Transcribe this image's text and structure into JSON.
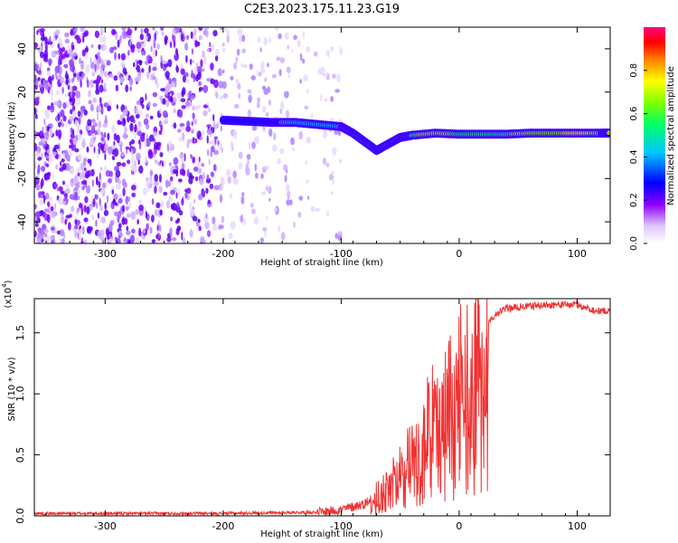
{
  "title": "C2E3.2023.175.11.23.G19",
  "chart_data": [
    {
      "type": "heatmap",
      "xlabel": "Height of straight line (km)",
      "ylabel": "Frequency (Hz)",
      "xlim": [
        -360,
        128
      ],
      "ylim": [
        -50,
        50
      ],
      "xticks": [
        -300,
        -200,
        -100,
        0,
        100
      ],
      "yticks": [
        -40,
        -20,
        0,
        20,
        40
      ],
      "colorbar": {
        "label": "Normalized spectral amplitude",
        "range": [
          0,
          1
        ],
        "ticks": [
          "0.0",
          "0.2",
          "0.4",
          "0.6",
          "0.8"
        ],
        "colors": [
          "#ffffff",
          "#8e00ff",
          "#0000ff",
          "#00c8ff",
          "#00ff66",
          "#7fff00",
          "#ffff00",
          "#ff8000",
          "#ff0000",
          "#ff0080"
        ]
      },
      "noise_region": {
        "x_range": [
          -360,
          -100
        ],
        "description_color": "#7a00ff"
      },
      "ridge": {
        "x": [
          -200,
          -180,
          -160,
          -140,
          -120,
          -100,
          -90,
          -80,
          -70,
          -60,
          -50,
          -40,
          -20,
          0,
          20,
          40,
          60,
          80,
          100,
          120,
          128
        ],
        "y": [
          7,
          6.5,
          6,
          6,
          5,
          4,
          1,
          -3,
          -7,
          -4,
          -1,
          0,
          1,
          0.5,
          0.5,
          0.5,
          1,
          1,
          1,
          1,
          1
        ],
        "amplitude": [
          0.25,
          0.3,
          0.35,
          0.45,
          0.5,
          0.45,
          0.55,
          0.6,
          0.4,
          0.5,
          0.6,
          0.7,
          0.75,
          0.7,
          0.65,
          0.7,
          0.75,
          0.85,
          0.9,
          0.85,
          0.8
        ]
      }
    },
    {
      "type": "line",
      "xlabel": "Height of straight line (km)",
      "ylabel": "SNR (10 * v/v)",
      "yscale_label": "(x10",
      "yscale_exp": "4",
      "xlim": [
        -360,
        128
      ],
      "ylim": [
        0,
        1.78
      ],
      "xticks": [
        -300,
        -200,
        -100,
        0,
        100
      ],
      "yticks": [
        "0.0",
        "0.5",
        "1.0",
        "1.5"
      ],
      "line_color": "#ee3333",
      "series": [
        {
          "x": [
            -360,
            -300,
            -200,
            -120,
            -100,
            -80,
            -60,
            -50,
            -40,
            -30,
            -20,
            -10,
            0,
            10,
            20,
            30,
            40,
            60,
            80,
            100,
            115,
            128
          ],
          "y": [
            0.02,
            0.02,
            0.02,
            0.03,
            0.05,
            0.1,
            0.25,
            0.4,
            0.55,
            0.7,
            0.85,
            0.95,
            1.1,
            1.3,
            1.5,
            1.65,
            1.7,
            1.72,
            1.73,
            1.73,
            1.68,
            1.68
          ]
        }
      ]
    }
  ]
}
